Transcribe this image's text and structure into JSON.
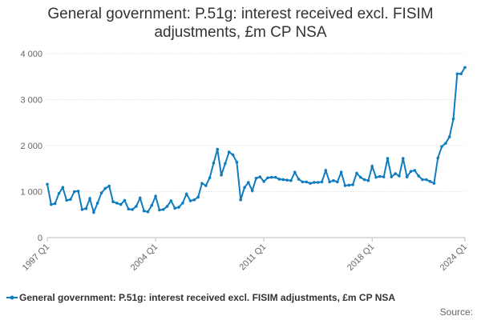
{
  "chart_data": {
    "type": "line",
    "title": "General government: P.51g: interest received excl. FISIM adjustments, £m CP NSA",
    "xlabel": "",
    "ylabel": "",
    "ylim": [
      0,
      4000
    ],
    "y_ticks": [
      0,
      1000,
      2000,
      3000,
      4000
    ],
    "y_tick_labels": [
      "0",
      "1 000",
      "2 000",
      "3 000",
      "4 000"
    ],
    "x_ticks": [
      {
        "label": "1997 Q1",
        "index": 0
      },
      {
        "label": "2004 Q1",
        "index": 28
      },
      {
        "label": "2011 Q1",
        "index": 56
      },
      {
        "label": "2018 Q1",
        "index": 84
      },
      {
        "label": "2024 Q1",
        "index": 108
      }
    ],
    "grid": "horizontal",
    "legend_position": "bottom",
    "color": "#0f7cbf",
    "series": [
      {
        "name": "General government: P.51g: interest received excl. FISIM adjustments, £m CP NSA",
        "start": "1997 Q1",
        "frequency": "quarterly",
        "values": [
          1160,
          720,
          740,
          960,
          1090,
          810,
          830,
          1000,
          1010,
          610,
          630,
          850,
          550,
          750,
          970,
          1070,
          1120,
          780,
          750,
          720,
          810,
          620,
          610,
          680,
          860,
          580,
          560,
          700,
          900,
          600,
          610,
          680,
          800,
          640,
          660,
          750,
          950,
          800,
          820,
          880,
          1180,
          1130,
          1300,
          1620,
          1920,
          1360,
          1610,
          1860,
          1800,
          1640,
          820,
          1090,
          1200,
          1020,
          1290,
          1320,
          1220,
          1300,
          1310,
          1310,
          1270,
          1260,
          1250,
          1240,
          1420,
          1270,
          1210,
          1210,
          1180,
          1200,
          1200,
          1210,
          1460,
          1210,
          1240,
          1210,
          1420,
          1130,
          1140,
          1150,
          1400,
          1310,
          1260,
          1240,
          1550,
          1310,
          1330,
          1320,
          1720,
          1320,
          1390,
          1340,
          1720,
          1320,
          1440,
          1460,
          1340,
          1260,
          1260,
          1220,
          1180,
          1730,
          1980,
          2050,
          2190,
          2580,
          3560,
          3560,
          3700
        ]
      }
    ]
  },
  "footer": {
    "source_label": "Source:"
  }
}
